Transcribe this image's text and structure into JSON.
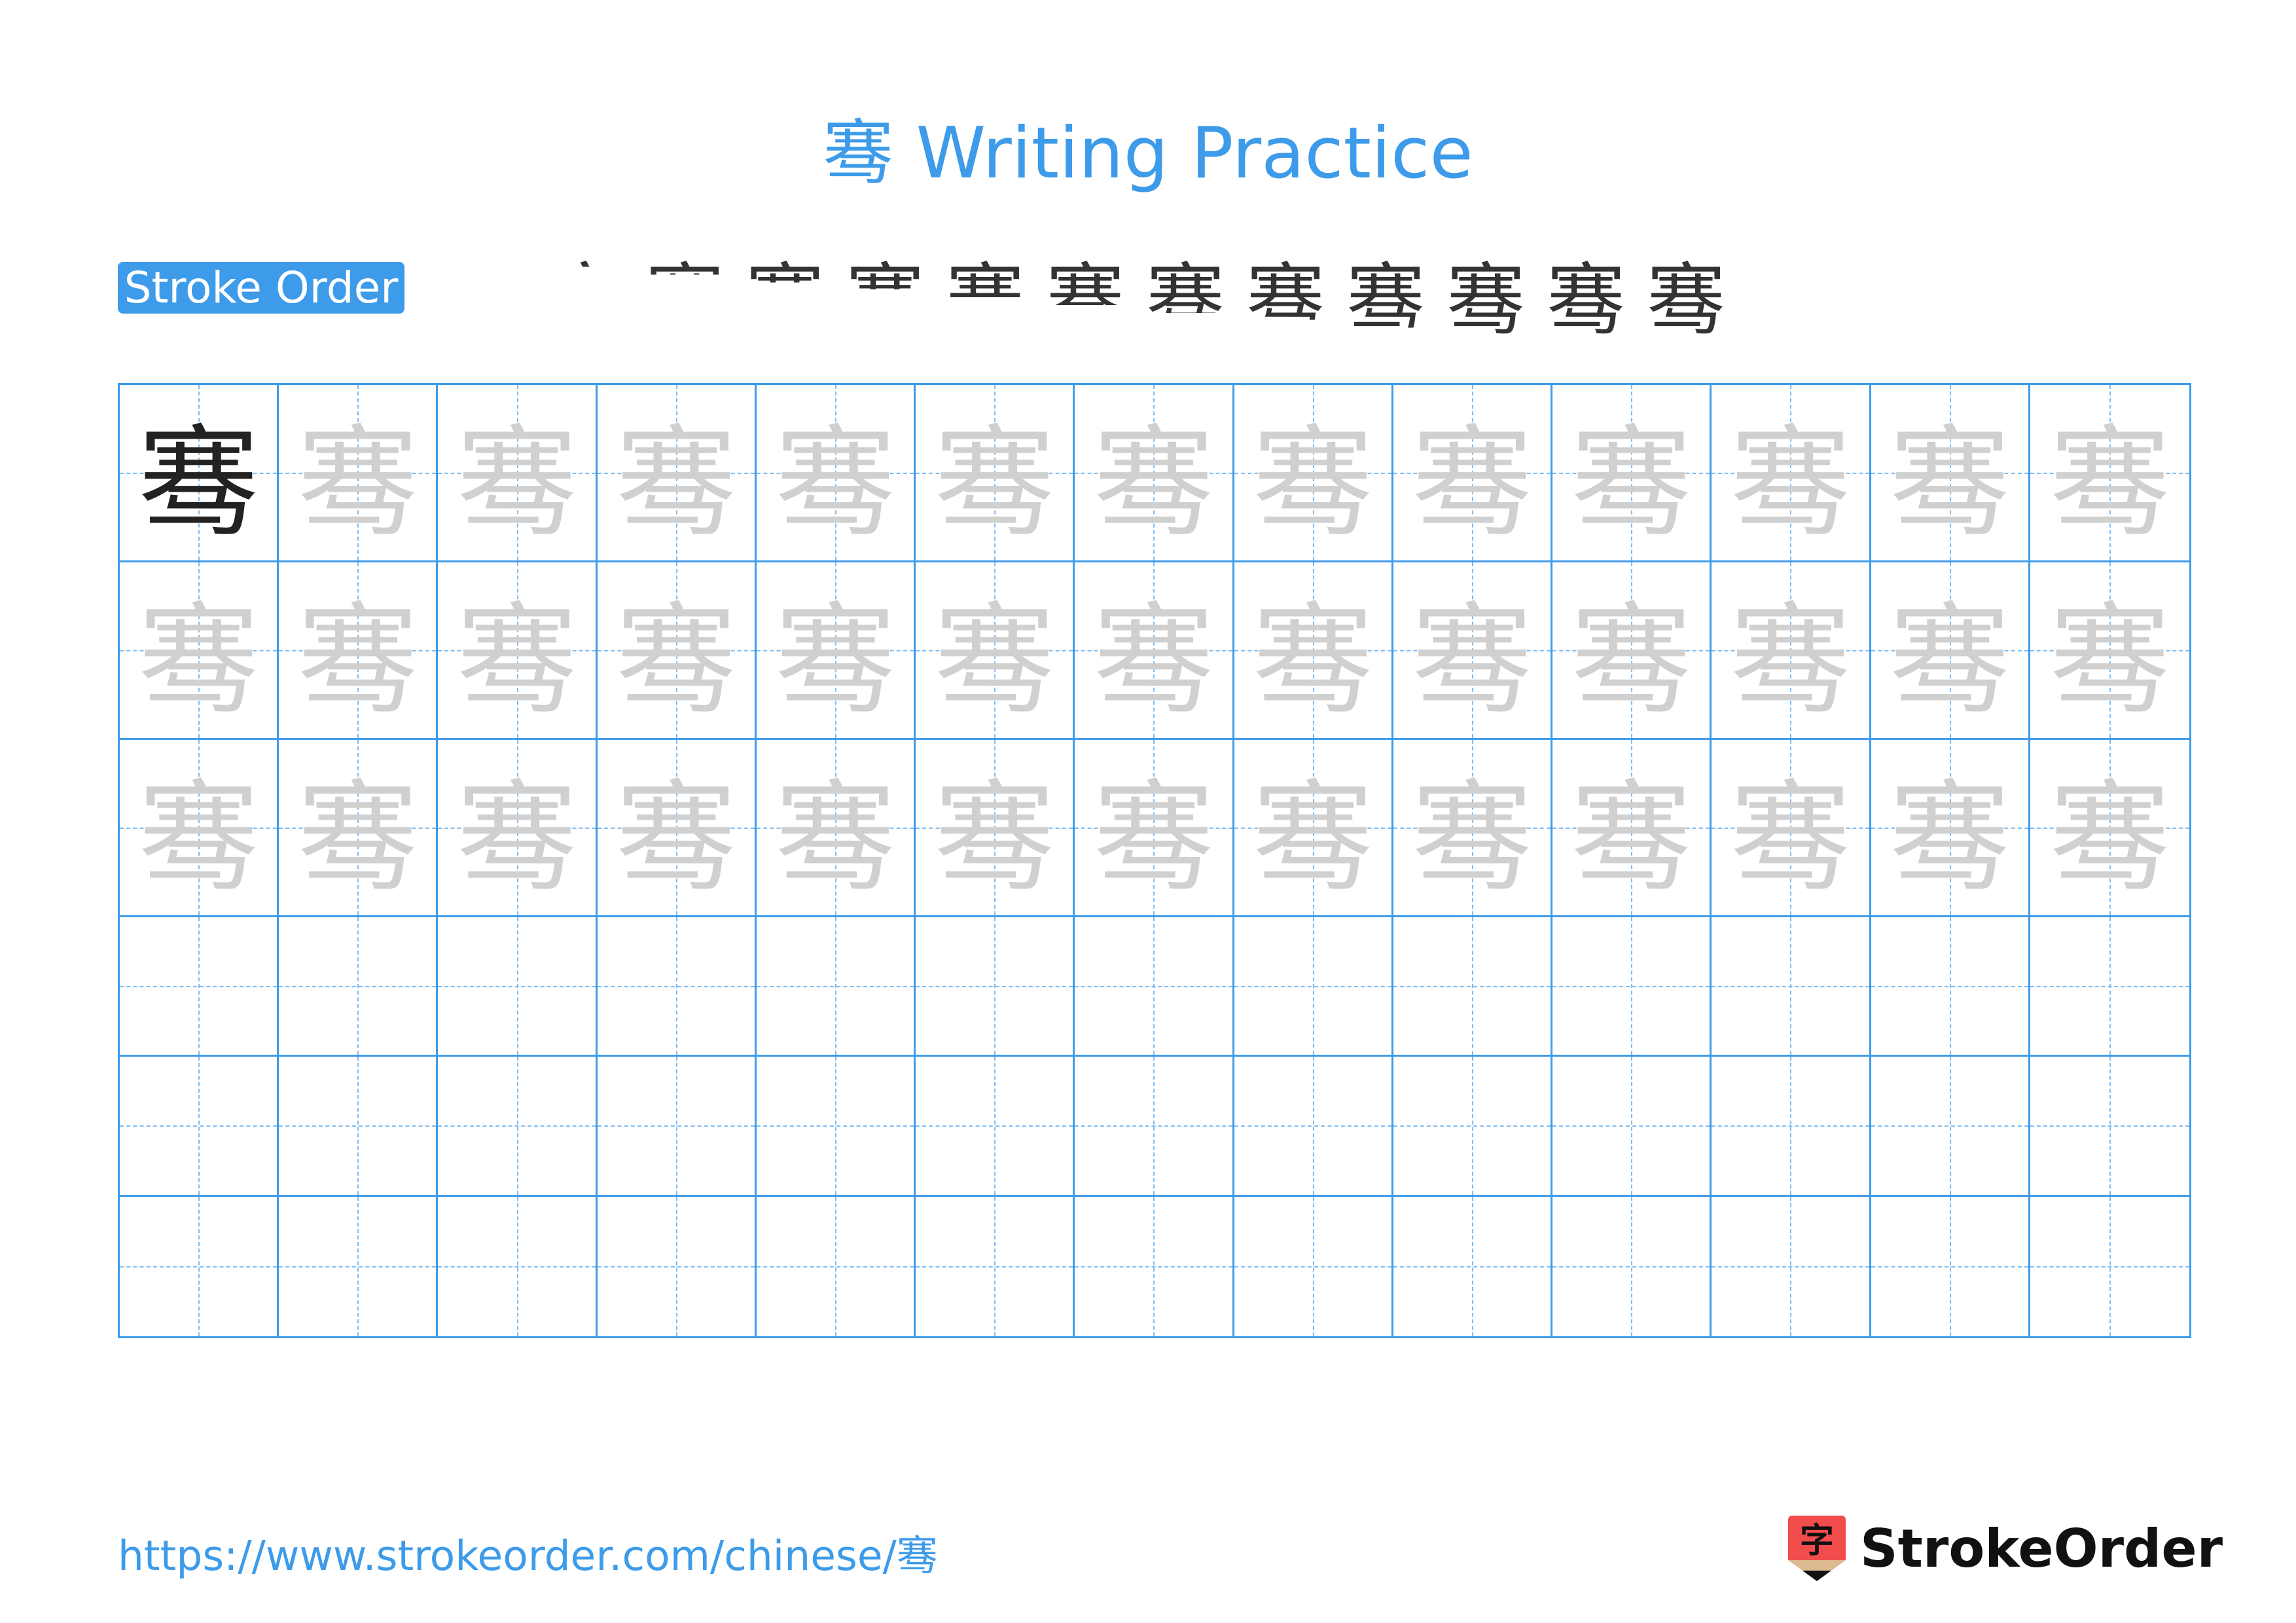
{
  "character": "骞",
  "title": "骞 Writing Practice",
  "stroke_order": {
    "label": "Stroke Order",
    "stroke_count": 13,
    "highlight_color": "#ff0000"
  },
  "grid": {
    "columns": 13,
    "rows": 6,
    "model_rows": 3,
    "line_color": "#3d9be9",
    "trace_color": "#d0d0d0"
  },
  "footer": {
    "url": "https://www.strokeorder.com/chinese/骞",
    "brand": "StrokeOrder",
    "logo_glyph": "字"
  },
  "colors": {
    "accent": "#3d9be9",
    "logo_red": "#f24c4c",
    "logo_tan": "#dcb991"
  }
}
